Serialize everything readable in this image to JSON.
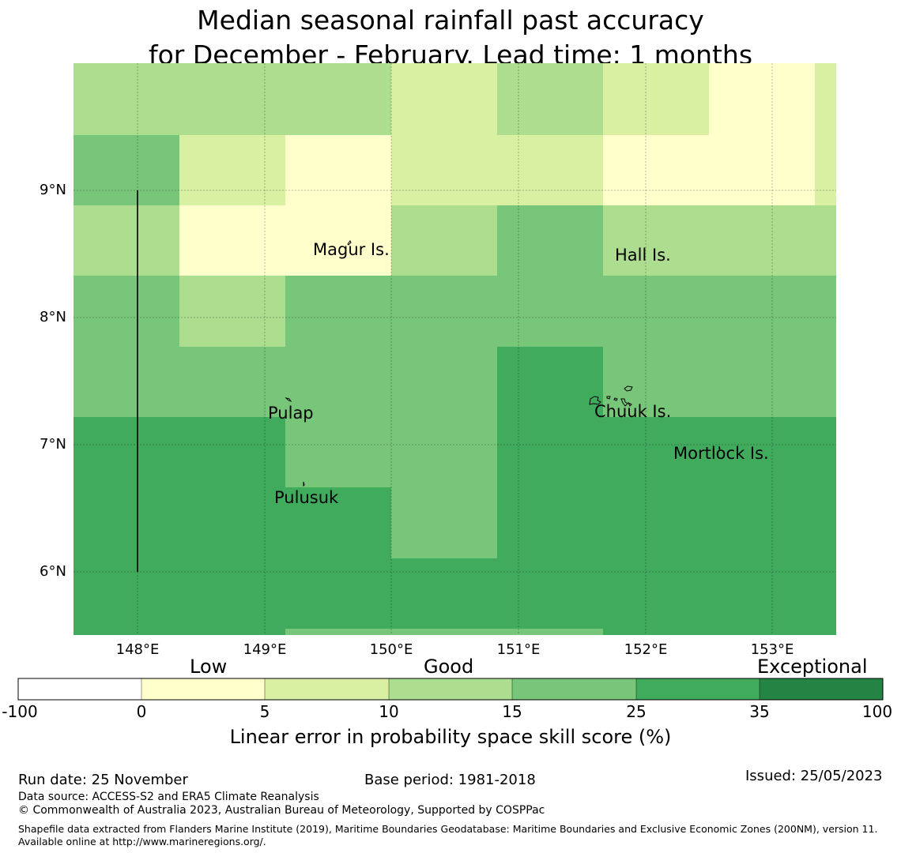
{
  "title": {
    "line1": "Median seasonal rainfall past accuracy",
    "line2": "for December - February. Lead time: 1 months"
  },
  "axes": {
    "lat_labels": [
      "9°N",
      "8°N",
      "7°N",
      "6°N"
    ],
    "lon_labels": [
      "148°E",
      "149°E",
      "150°E",
      "151°E",
      "152°E",
      "153°E"
    ]
  },
  "places": {
    "magur": "Magur Is.",
    "hall": "Hall Is.",
    "pulap": "Pulap",
    "chuuk": "Chuuk Is.",
    "mortlock": "Mortlock Is.",
    "pulusuk": "Pulusuk"
  },
  "legend": {
    "categories": {
      "low": "Low",
      "good": "Good",
      "exceptional": "Exceptional"
    },
    "ticks": [
      "-100",
      "0",
      "5",
      "10",
      "15",
      "25",
      "35",
      "100"
    ],
    "colors": [
      "#ffffff",
      "#ffffcc",
      "#d9f0a3",
      "#addd8e",
      "#78c679",
      "#41ab5d",
      "#238443"
    ],
    "title": "Linear error in probability space skill score (%)"
  },
  "footer": {
    "run_date": "Run date: 25 November",
    "base_period": "Base period: 1981-2018",
    "issued": "Issued: 25/05/2023",
    "data_source": "Data source: ACCESS-S2 and ERA5 Climate Reanalysis",
    "copyright": "© Commonwealth of Australia 2023, Australian Bureau of Meteorology, Supported by COSPPac",
    "shapefile": "Shapefile data extracted from Flanders Marine Institute (2019), Maritime Boundaries Geodatabase: Maritime Boundaries and Exclusive Economic Zones (200NM), version 11. Available online at http://www.marineregions.org/."
  }
}
